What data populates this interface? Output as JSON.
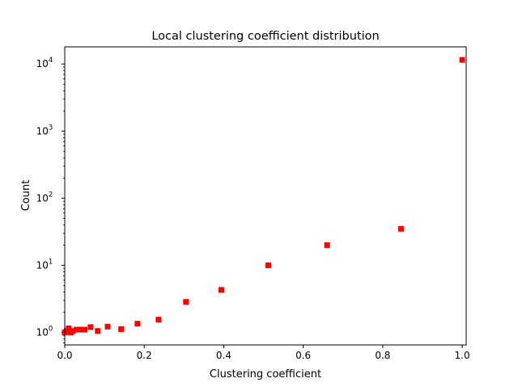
{
  "chart_data": {
    "type": "scatter",
    "title": "Local clustering coefficient distribution",
    "xlabel": "Clustering coefficient",
    "ylabel": "Count",
    "xlim": [
      0.0,
      1.01
    ],
    "ylim": [
      0.65,
      18000
    ],
    "yscale": "log",
    "grid": false,
    "marker": "square",
    "marker_color": "#ff0000",
    "x_ticks": [
      {
        "value": 0.0,
        "label": "0.0"
      },
      {
        "value": 0.2,
        "label": "0.2"
      },
      {
        "value": 0.4,
        "label": "0.4"
      },
      {
        "value": 0.6,
        "label": "0.6"
      },
      {
        "value": 0.8,
        "label": "0.8"
      },
      {
        "value": 1.0,
        "label": "1.0"
      }
    ],
    "y_ticks": [
      {
        "value": 1,
        "base": "10",
        "exp": "0"
      },
      {
        "value": 10,
        "base": "10",
        "exp": "1"
      },
      {
        "value": 100,
        "base": "10",
        "exp": "2"
      },
      {
        "value": 1000,
        "base": "10",
        "exp": "3"
      },
      {
        "value": 10000,
        "base": "10",
        "exp": "4"
      }
    ],
    "points": [
      {
        "x": 0.0,
        "y": 1.0
      },
      {
        "x": 0.005,
        "y": 1.05
      },
      {
        "x": 0.01,
        "y": 1.15
      },
      {
        "x": 0.015,
        "y": 1.0
      },
      {
        "x": 0.02,
        "y": 1.05
      },
      {
        "x": 0.03,
        "y": 1.1
      },
      {
        "x": 0.04,
        "y": 1.1
      },
      {
        "x": 0.05,
        "y": 1.1
      },
      {
        "x": 0.065,
        "y": 1.2
      },
      {
        "x": 0.083,
        "y": 1.05
      },
      {
        "x": 0.108,
        "y": 1.22
      },
      {
        "x": 0.142,
        "y": 1.12
      },
      {
        "x": 0.183,
        "y": 1.35
      },
      {
        "x": 0.236,
        "y": 1.55
      },
      {
        "x": 0.305,
        "y": 2.85
      },
      {
        "x": 0.394,
        "y": 4.3
      },
      {
        "x": 0.512,
        "y": 10.0
      },
      {
        "x": 0.66,
        "y": 20.0
      },
      {
        "x": 0.846,
        "y": 35.0
      },
      {
        "x": 1.0,
        "y": 11500
      }
    ]
  }
}
